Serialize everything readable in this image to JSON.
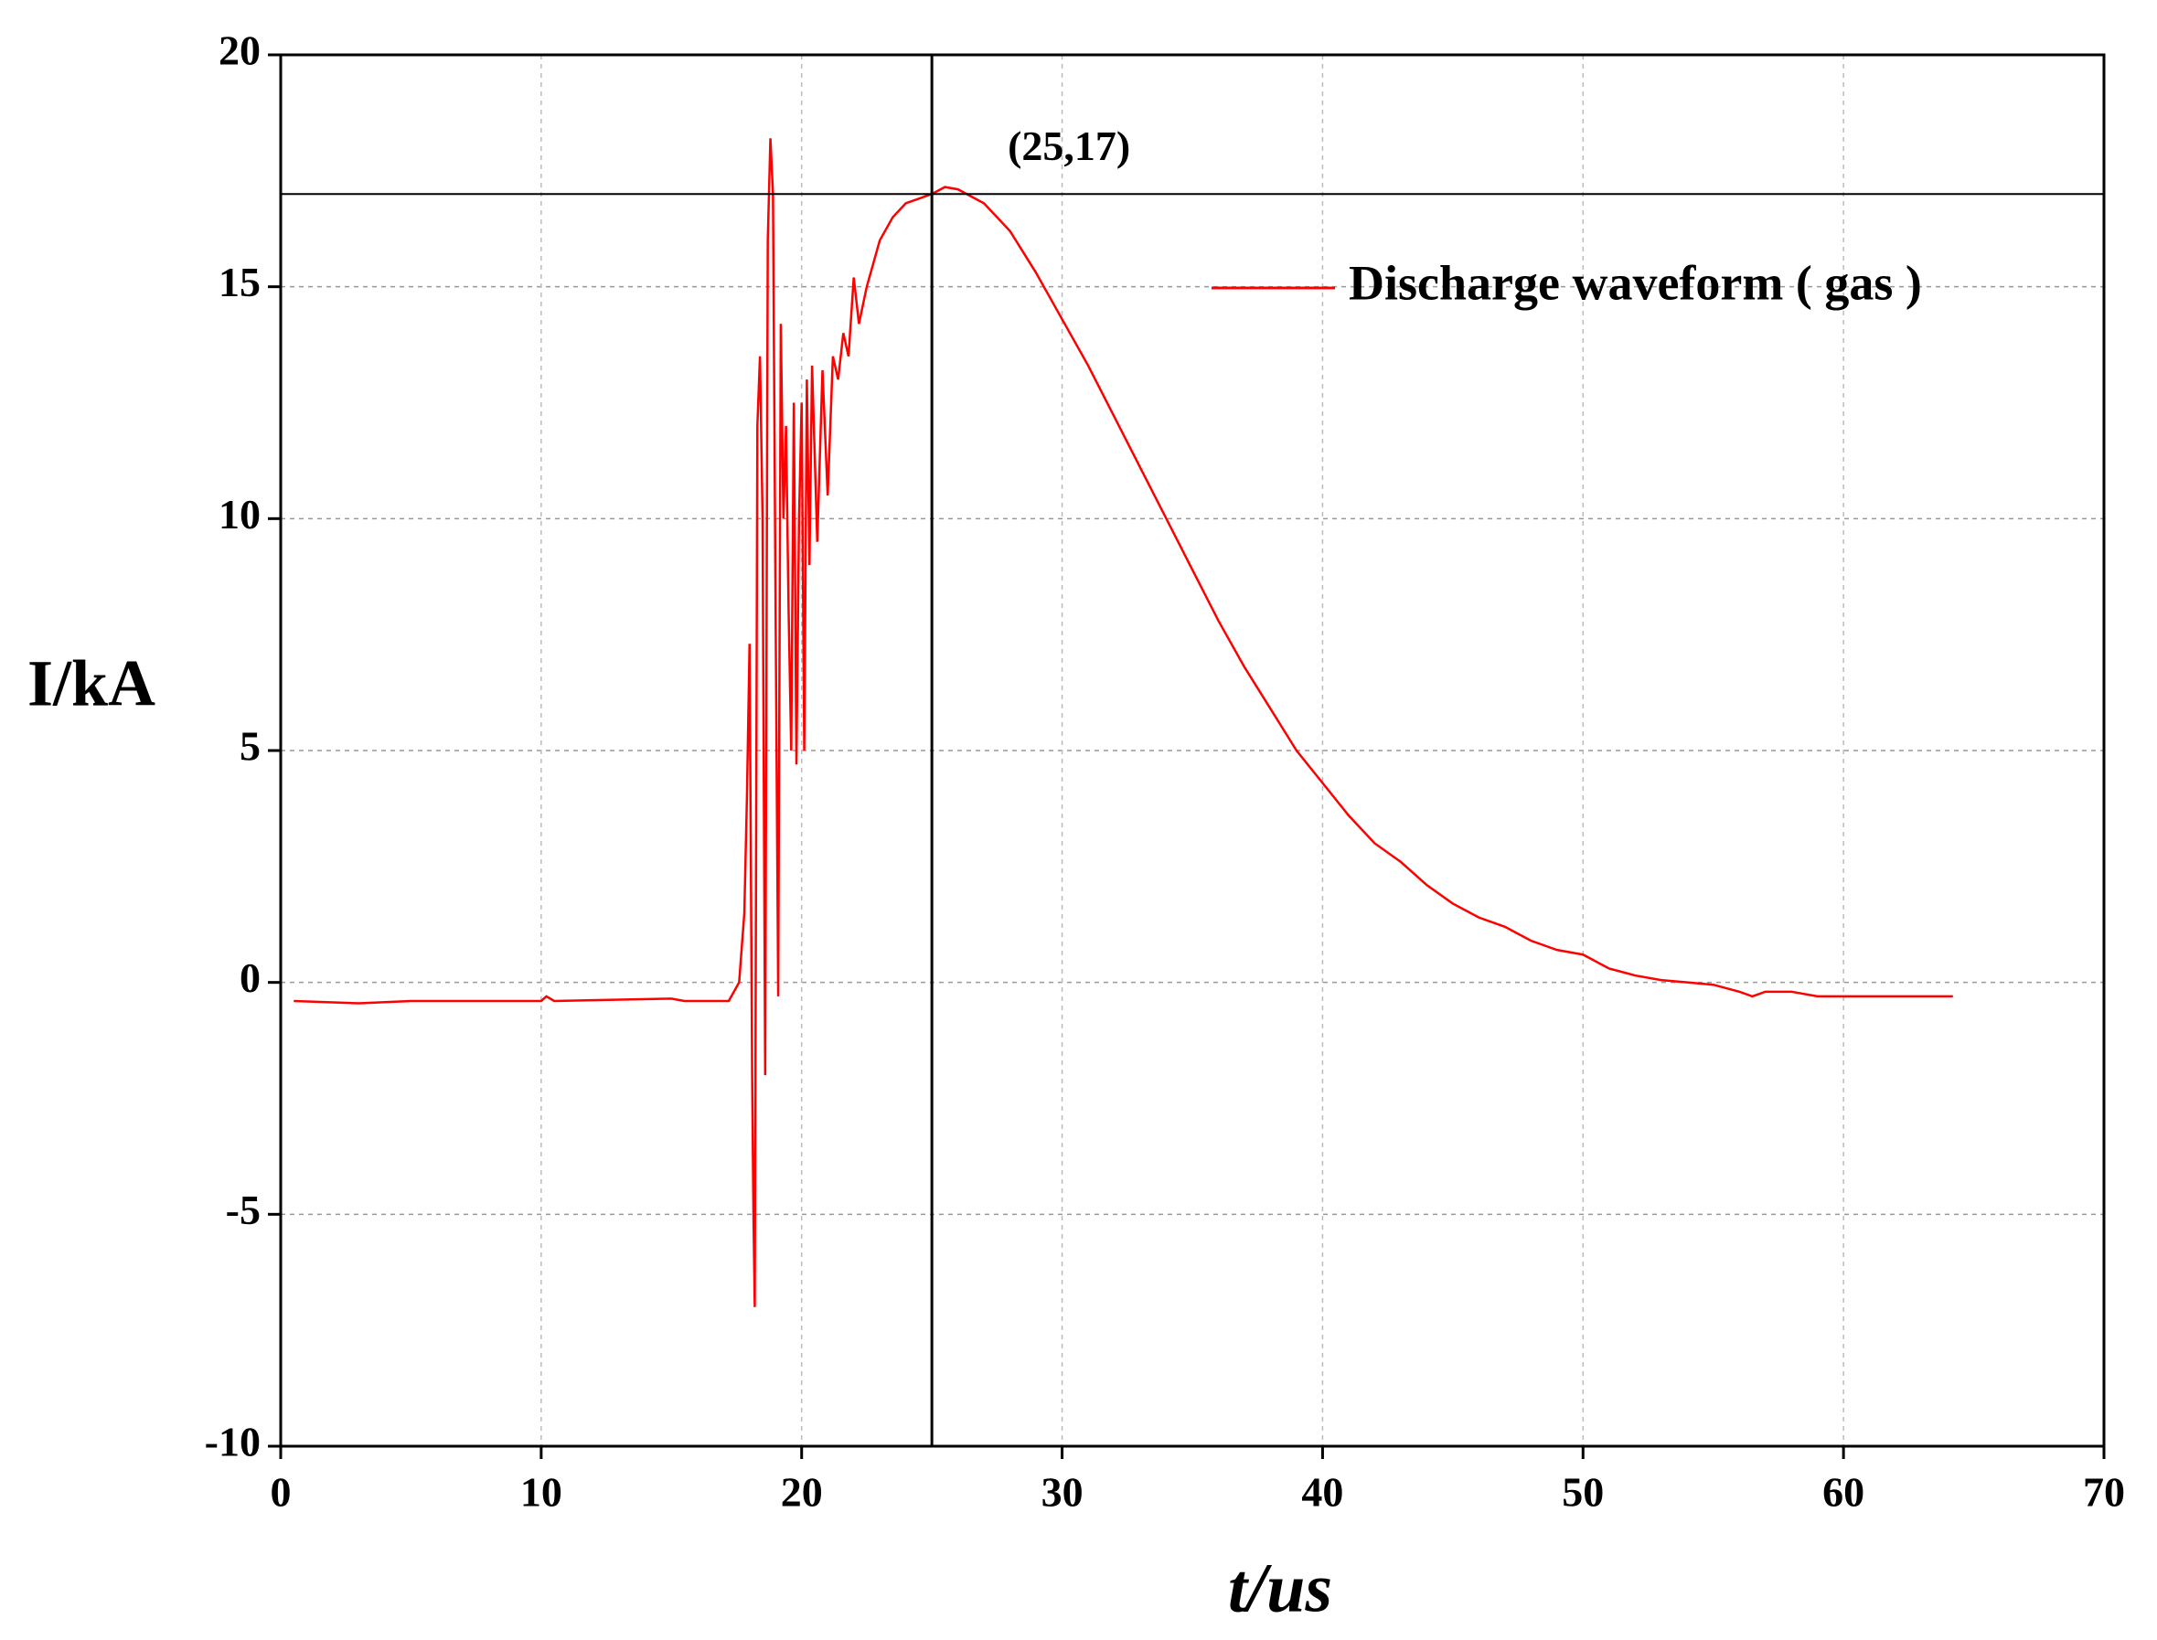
{
  "chart_data": {
    "type": "line",
    "x_label": "t/us",
    "y_label": "I/kA",
    "xlim": [
      0,
      70
    ],
    "ylim": [
      -10,
      20
    ],
    "xticks": [
      0,
      10,
      20,
      30,
      40,
      50,
      60,
      70
    ],
    "yticks": [
      -10,
      -5,
      0,
      5,
      10,
      15,
      20
    ],
    "grid": true,
    "legend_position": "upper right",
    "marker": {
      "x": 25,
      "y": 17,
      "label": "(25,17)"
    },
    "series": [
      {
        "name": "Discharge waveform ( gas )",
        "color": "#ff0000",
        "x": [
          0.5,
          3,
          5,
          10,
          10.2,
          10.5,
          15,
          15.5,
          17.2,
          17.6,
          17.8,
          17.9,
          18.0,
          18.1,
          18.15,
          18.2,
          18.3,
          18.4,
          18.5,
          18.6,
          18.7,
          18.8,
          18.9,
          19.0,
          19.1,
          19.2,
          19.3,
          19.4,
          19.5,
          19.6,
          19.7,
          19.8,
          19.9,
          20.0,
          20.1,
          20.2,
          20.3,
          20.4,
          20.6,
          20.8,
          21.0,
          21.2,
          21.4,
          21.6,
          21.8,
          22.0,
          22.2,
          22.5,
          23,
          23.5,
          24,
          24.5,
          25,
          25.5,
          26,
          27,
          28,
          29,
          30,
          31,
          32,
          33,
          34,
          35,
          36,
          37,
          38,
          39,
          40,
          41,
          42,
          43,
          44,
          45,
          46,
          47,
          48,
          49,
          50,
          51,
          52,
          53,
          54,
          55,
          56,
          56.5,
          57,
          58,
          59,
          60,
          62,
          64.2
        ],
        "values": [
          -0.4,
          -0.45,
          -0.4,
          -0.4,
          -0.3,
          -0.4,
          -0.35,
          -0.4,
          -0.4,
          0,
          1.5,
          4,
          7.3,
          -2,
          -5,
          -7,
          12,
          13.5,
          10,
          -2,
          16,
          18.2,
          17,
          8,
          -0.3,
          14.2,
          10,
          12,
          8,
          5,
          12.5,
          4.7,
          10,
          12.5,
          5,
          13,
          9,
          13.3,
          9.5,
          13.2,
          10.5,
          13.5,
          13,
          14,
          13.5,
          15.2,
          14.2,
          15,
          16,
          16.5,
          16.8,
          16.9,
          17,
          17.15,
          17.1,
          16.8,
          16.2,
          15.3,
          14.3,
          13.3,
          12.2,
          11.1,
          10,
          8.9,
          7.8,
          6.8,
          5.9,
          5.0,
          4.3,
          3.6,
          3.0,
          2.6,
          2.1,
          1.7,
          1.4,
          1.2,
          0.9,
          0.7,
          0.6,
          0.3,
          0.15,
          0.05,
          0,
          -0.05,
          -0.2,
          -0.3,
          -0.2,
          -0.2,
          -0.3,
          -0.3,
          -0.3,
          -0.3
        ]
      }
    ]
  }
}
